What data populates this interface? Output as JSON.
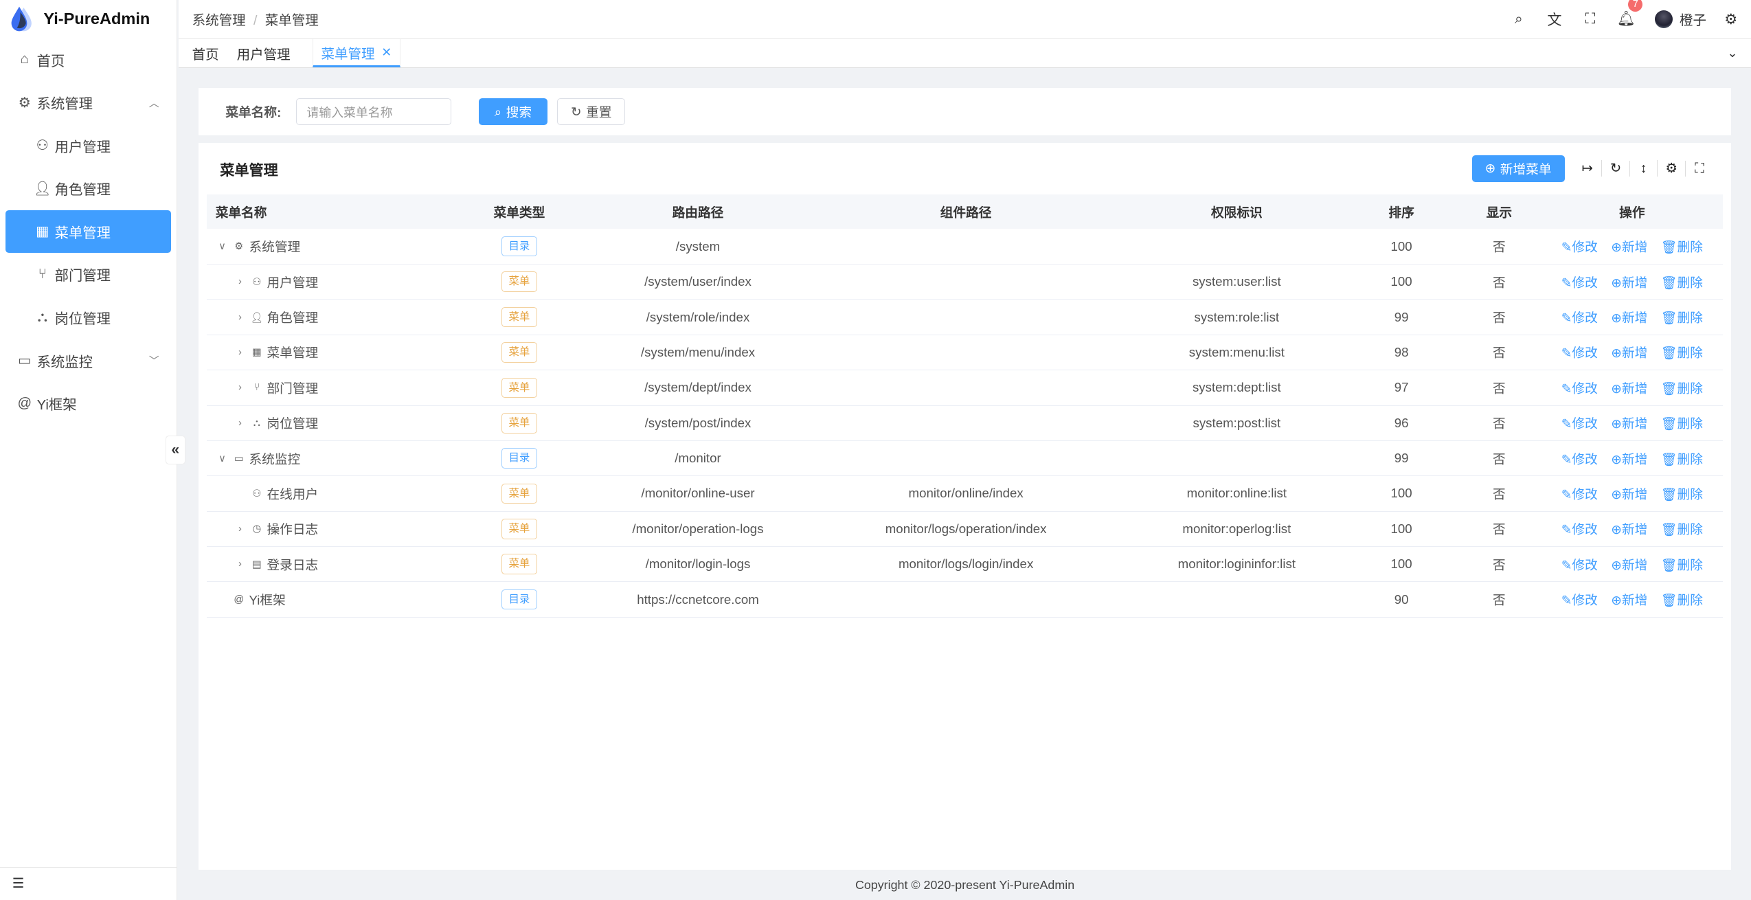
{
  "app": {
    "title": "Yi-PureAdmin",
    "accent": "#409eff"
  },
  "sidebar": {
    "items": [
      {
        "label": "首页",
        "icon": "home-icon",
        "level": 0
      },
      {
        "label": "系统管理",
        "icon": "gear-icon",
        "level": 0,
        "expanded": true
      },
      {
        "label": "用户管理",
        "icon": "user-lock-icon",
        "level": 1
      },
      {
        "label": "角色管理",
        "icon": "role-icon",
        "level": 1
      },
      {
        "label": "菜单管理",
        "icon": "grid-icon",
        "level": 1,
        "active": true
      },
      {
        "label": "部门管理",
        "icon": "branch-icon",
        "level": 1
      },
      {
        "label": "岗位管理",
        "icon": "network-icon",
        "level": 1
      },
      {
        "label": "系统监控",
        "icon": "monitor-icon",
        "level": 0,
        "expanded": false
      },
      {
        "label": "Yi框架",
        "icon": "at-icon",
        "level": 0
      }
    ]
  },
  "header": {
    "breadcrumb": [
      "系统管理",
      "菜单管理"
    ],
    "notification_count": "7",
    "username": "橙子"
  },
  "tabs": [
    {
      "label": "首页"
    },
    {
      "label": "用户管理"
    },
    {
      "label": "菜单管理",
      "active": true
    }
  ],
  "search": {
    "label": "菜单名称:",
    "placeholder": "请输入菜单名称",
    "search_label": "搜索",
    "reset_label": "重置"
  },
  "table": {
    "title": "菜单管理",
    "add_label": "新增菜单",
    "columns": [
      "菜单名称",
      "菜单类型",
      "路由路径",
      "组件路径",
      "权限标识",
      "排序",
      "显示",
      "操作"
    ],
    "actions": {
      "edit": "修改",
      "add": "新增",
      "delete": "删除"
    },
    "rows": [
      {
        "name": "系统管理",
        "icon": "gear-icon",
        "level": 0,
        "expander": "down",
        "type": "目录",
        "kind": "dir",
        "path": "/system",
        "component": "",
        "perm": "",
        "sort": "100",
        "visible": "否"
      },
      {
        "name": "用户管理",
        "icon": "user-lock-icon",
        "level": 1,
        "expander": "right",
        "type": "菜单",
        "kind": "menu",
        "path": "/system/user/index",
        "component": "",
        "perm": "system:user:list",
        "sort": "100",
        "visible": "否"
      },
      {
        "name": "角色管理",
        "icon": "role-icon",
        "level": 1,
        "expander": "right",
        "type": "菜单",
        "kind": "menu",
        "path": "/system/role/index",
        "component": "",
        "perm": "system:role:list",
        "sort": "99",
        "visible": "否"
      },
      {
        "name": "菜单管理",
        "icon": "grid-icon",
        "level": 1,
        "expander": "right",
        "type": "菜单",
        "kind": "menu",
        "path": "/system/menu/index",
        "component": "",
        "perm": "system:menu:list",
        "sort": "98",
        "visible": "否"
      },
      {
        "name": "部门管理",
        "icon": "branch-icon",
        "level": 1,
        "expander": "right",
        "type": "菜单",
        "kind": "menu",
        "path": "/system/dept/index",
        "component": "",
        "perm": "system:dept:list",
        "sort": "97",
        "visible": "否"
      },
      {
        "name": "岗位管理",
        "icon": "network-icon",
        "level": 1,
        "expander": "right",
        "type": "菜单",
        "kind": "menu",
        "path": "/system/post/index",
        "component": "",
        "perm": "system:post:list",
        "sort": "96",
        "visible": "否"
      },
      {
        "name": "系统监控",
        "icon": "monitor-icon",
        "level": 0,
        "expander": "down",
        "type": "目录",
        "kind": "dir",
        "path": "/monitor",
        "component": "",
        "perm": "",
        "sort": "99",
        "visible": "否"
      },
      {
        "name": "在线用户",
        "icon": "online-user-icon",
        "level": 1,
        "expander": "",
        "type": "菜单",
        "kind": "menu",
        "path": "/monitor/online-user",
        "component": "monitor/online/index",
        "perm": "monitor:online:list",
        "sort": "100",
        "visible": "否"
      },
      {
        "name": "操作日志",
        "icon": "history-icon",
        "level": 1,
        "expander": "right",
        "type": "菜单",
        "kind": "menu",
        "path": "/monitor/operation-logs",
        "component": "monitor/logs/operation/index",
        "perm": "monitor:operlog:list",
        "sort": "100",
        "visible": "否"
      },
      {
        "name": "登录日志",
        "icon": "window-icon",
        "level": 1,
        "expander": "right",
        "type": "菜单",
        "kind": "menu",
        "path": "/monitor/login-logs",
        "component": "monitor/logs/login/index",
        "perm": "monitor:logininfor:list",
        "sort": "100",
        "visible": "否"
      },
      {
        "name": "Yi框架",
        "icon": "at-icon",
        "level": 0,
        "expander": "",
        "type": "目录",
        "kind": "dir",
        "path": "https://ccnetcore.com",
        "component": "",
        "perm": "",
        "sort": "90",
        "visible": "否"
      }
    ]
  },
  "footer": {
    "text": "Copyright © 2020-present Yi-PureAdmin"
  }
}
